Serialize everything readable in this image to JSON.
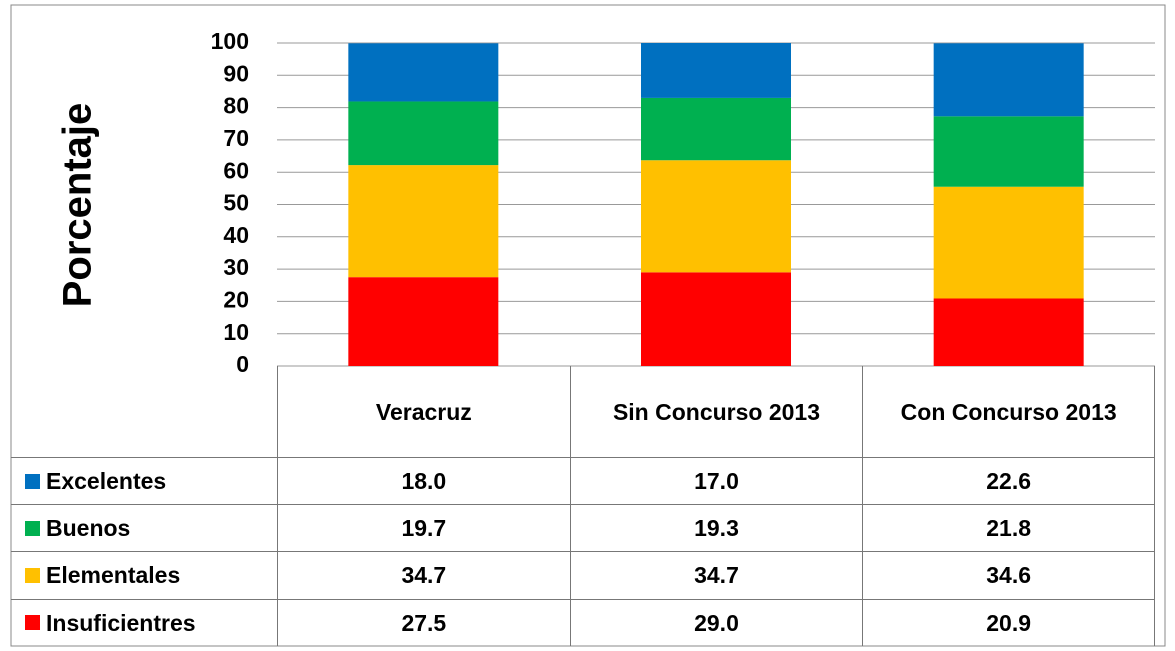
{
  "chart_data": {
    "type": "stacked_bar",
    "y_label": "Porcentaje",
    "categories": [
      "Veracruz",
      "Sin Concurso 2013",
      "Con Concurso 2013"
    ],
    "series": [
      {
        "name": "Excelentes",
        "color": "#0070c0",
        "values": [
          18.0,
          17.0,
          22.6
        ],
        "value_labels": [
          "18.0",
          "17.0",
          "22.6"
        ]
      },
      {
        "name": "Buenos",
        "color": "#00b050",
        "values": [
          19.7,
          19.3,
          21.8
        ],
        "value_labels": [
          "19.7",
          "19.3",
          "21.8"
        ]
      },
      {
        "name": "Elementales",
        "color": "#ffc000",
        "values": [
          34.7,
          34.7,
          34.6
        ],
        "value_labels": [
          "34.7",
          "34.7",
          "34.6"
        ]
      },
      {
        "name": "Insuficientres",
        "color": "#ff0000",
        "values": [
          27.5,
          29.0,
          20.9
        ],
        "value_labels": [
          "27.5",
          "29.0",
          "20.9"
        ]
      }
    ],
    "ylim": [
      0,
      100
    ],
    "yticks": [
      0,
      10,
      20,
      30,
      40,
      50,
      60,
      70,
      80,
      90,
      100
    ],
    "grid": true
  }
}
